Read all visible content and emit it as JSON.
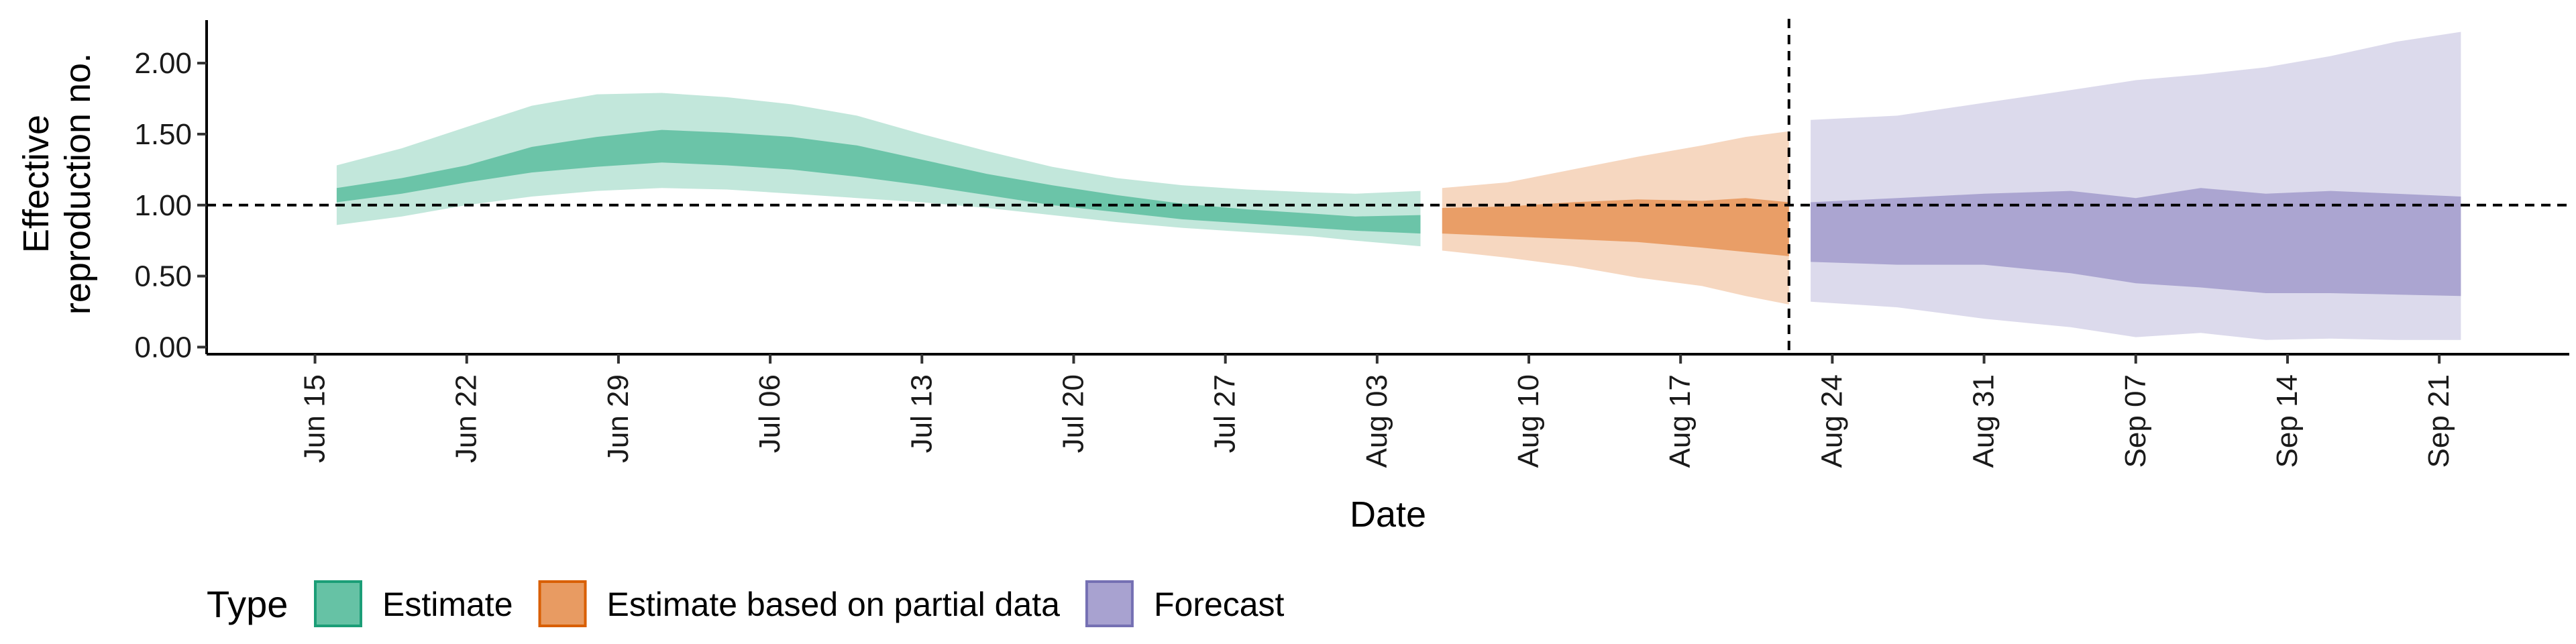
{
  "chart_data": {
    "type": "area",
    "xlabel": "Date",
    "ylabel_lines": [
      "Effective",
      "reproduction no."
    ],
    "ylim": [
      -0.05,
      2.35
    ],
    "xlim": [
      "2021-06-10",
      "2021-09-27"
    ],
    "y_ticks": [
      0,
      0.5,
      1,
      1.5,
      2
    ],
    "y_tick_labels": [
      "0.00",
      "0.50",
      "1.00",
      "1.50",
      "2.00"
    ],
    "x_ticks": [
      "2021-06-15",
      "2021-06-22",
      "2021-06-29",
      "2021-07-06",
      "2021-07-13",
      "2021-07-20",
      "2021-07-27",
      "2021-08-03",
      "2021-08-10",
      "2021-08-17",
      "2021-08-24",
      "2021-08-31",
      "2021-09-07",
      "2021-09-14",
      "2021-09-21"
    ],
    "x_tick_labels": [
      "Jun 15",
      "Jun 22",
      "Jun 29",
      "Jul 06",
      "Jul 13",
      "Jul 20",
      "Jul 27",
      "Aug 03",
      "Aug 10",
      "Aug 17",
      "Aug 24",
      "Aug 31",
      "Sep 07",
      "Sep 14",
      "Sep 21"
    ],
    "hline_y": 1,
    "vline_x": "2021-08-22",
    "legend": {
      "title": "Type",
      "position": "bottom-left"
    },
    "series": [
      {
        "name": "Estimate",
        "color": "#66c2a5",
        "border": "#1b9e77",
        "x": [
          "2021-06-16",
          "2021-06-19",
          "2021-06-22",
          "2021-06-25",
          "2021-06-28",
          "2021-07-01",
          "2021-07-04",
          "2021-07-07",
          "2021-07-10",
          "2021-07-13",
          "2021-07-16",
          "2021-07-19",
          "2021-07-22",
          "2021-07-25",
          "2021-07-28",
          "2021-07-31",
          "2021-08-02",
          "2021-08-05"
        ],
        "outer_lower": [
          0.86,
          0.92,
          1.0,
          1.06,
          1.1,
          1.12,
          1.11,
          1.08,
          1.05,
          1.02,
          0.98,
          0.93,
          0.88,
          0.84,
          0.81,
          0.78,
          0.75,
          0.71
        ],
        "outer_upper": [
          1.28,
          1.4,
          1.55,
          1.7,
          1.78,
          1.79,
          1.76,
          1.71,
          1.63,
          1.5,
          1.38,
          1.27,
          1.19,
          1.14,
          1.11,
          1.09,
          1.08,
          1.1
        ],
        "inner_lower": [
          1.02,
          1.08,
          1.16,
          1.23,
          1.27,
          1.3,
          1.28,
          1.25,
          1.2,
          1.14,
          1.07,
          1.0,
          0.95,
          0.9,
          0.87,
          0.84,
          0.82,
          0.8
        ],
        "inner_upper": [
          1.12,
          1.19,
          1.28,
          1.41,
          1.48,
          1.53,
          1.51,
          1.48,
          1.42,
          1.32,
          1.22,
          1.14,
          1.07,
          1.01,
          0.97,
          0.94,
          0.92,
          0.93
        ]
      },
      {
        "name": "Estimate based on partial data",
        "color": "#e89b62",
        "border": "#d95f02",
        "x": [
          "2021-08-06",
          "2021-08-09",
          "2021-08-12",
          "2021-08-15",
          "2021-08-18",
          "2021-08-20",
          "2021-08-22"
        ],
        "outer_lower": [
          0.68,
          0.63,
          0.57,
          0.49,
          0.43,
          0.36,
          0.3
        ],
        "outer_upper": [
          1.12,
          1.16,
          1.25,
          1.34,
          1.42,
          1.48,
          1.52
        ],
        "inner_lower": [
          0.8,
          0.78,
          0.76,
          0.74,
          0.7,
          0.67,
          0.64
        ],
        "inner_upper": [
          0.98,
          0.99,
          1.02,
          1.04,
          1.03,
          1.05,
          1.02
        ]
      },
      {
        "name": "Forecast",
        "color": "#a8a2d0",
        "border": "#7570b3",
        "x": [
          "2021-08-23",
          "2021-08-27",
          "2021-08-31",
          "2021-09-04",
          "2021-09-07",
          "2021-09-10",
          "2021-09-13",
          "2021-09-16",
          "2021-09-19",
          "2021-09-22"
        ],
        "outer_lower": [
          0.32,
          0.28,
          0.2,
          0.14,
          0.07,
          0.1,
          0.05,
          0.06,
          0.05,
          0.05
        ],
        "outer_upper": [
          1.6,
          1.63,
          1.72,
          1.81,
          1.88,
          1.92,
          1.97,
          2.05,
          2.15,
          2.22
        ],
        "inner_lower": [
          0.6,
          0.58,
          0.58,
          0.52,
          0.45,
          0.42,
          0.38,
          0.38,
          0.37,
          0.36
        ],
        "inner_upper": [
          1.02,
          1.05,
          1.08,
          1.1,
          1.05,
          1.12,
          1.08,
          1.1,
          1.08,
          1.06
        ]
      }
    ]
  }
}
